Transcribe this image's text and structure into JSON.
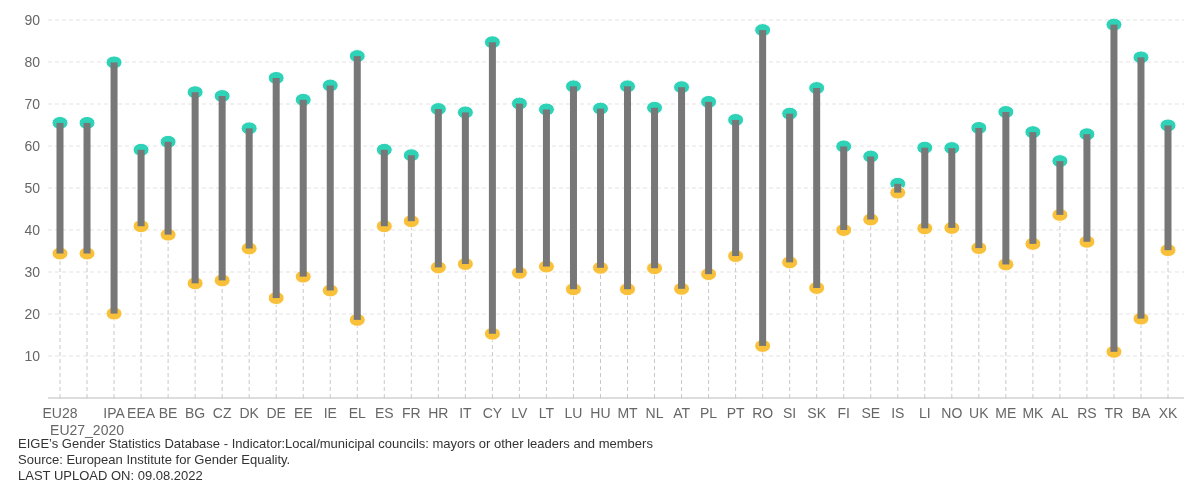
{
  "chart_data": {
    "type": "bar",
    "categories": [
      "EU28",
      "EU27_2020",
      "IPA",
      "EEA",
      "BE",
      "BG",
      "CZ",
      "DK",
      "DE",
      "EE",
      "IE",
      "EL",
      "ES",
      "FR",
      "HR",
      "IT",
      "CY",
      "LV",
      "LT",
      "LU",
      "HU",
      "MT",
      "NL",
      "AT",
      "PL",
      "PT",
      "RO",
      "SI",
      "SK",
      "FI",
      "SE",
      "IS",
      "LI",
      "NO",
      "UK",
      "ME",
      "MK",
      "AL",
      "RS",
      "TR",
      "BA",
      "XK"
    ],
    "series": [
      {
        "type": "bar",
        "color": "#777777",
        "base": [
          34.4,
          34.4,
          20.1,
          40.9,
          38.9,
          27.3,
          28.0,
          35.6,
          23.8,
          28.9,
          25.6,
          18.6,
          40.9,
          42.1,
          31.1,
          31.9,
          15.3,
          29.8,
          31.3,
          25.9,
          31.0,
          25.9,
          30.9,
          26.0,
          29.5,
          33.8,
          12.4,
          32.3,
          26.2,
          40.0,
          42.5,
          48.9,
          40.4,
          40.5,
          35.7,
          31.8,
          36.7,
          43.6,
          37.2,
          11.0,
          18.9,
          35.2
        ],
        "values": [
          31.1,
          31.1,
          59.8,
          18.2,
          22.1,
          45.5,
          43.9,
          28.6,
          52.4,
          42.1,
          48.8,
          62.8,
          18.2,
          15.7,
          37.7,
          36.1,
          69.4,
          40.3,
          37.4,
          48.3,
          37.9,
          48.3,
          38.2,
          48.0,
          41.0,
          32.4,
          75.2,
          35.4,
          47.6,
          19.9,
          15.0,
          2.1,
          19.2,
          19.0,
          28.6,
          36.3,
          26.6,
          12.8,
          25.6,
          77.9,
          62.2,
          29.7
        ]
      },
      {
        "type": "scatter",
        "color": "#2ed3b7",
        "values": [
          65.5,
          65.5,
          79.9,
          59.1,
          61.0,
          72.8,
          71.9,
          64.2,
          76.2,
          71.0,
          74.4,
          81.4,
          59.1,
          57.8,
          68.8,
          68.0,
          84.7,
          70.1,
          68.7,
          74.2,
          68.9,
          74.2,
          69.1,
          74.0,
          70.5,
          66.2,
          87.6,
          67.7,
          73.8,
          59.9,
          57.5,
          51.0,
          59.6,
          59.5,
          64.3,
          68.1,
          63.3,
          56.4,
          62.8,
          88.9,
          81.1,
          64.9
        ]
      },
      {
        "type": "scatter",
        "color": "#f9c13a",
        "values": [
          34.4,
          34.4,
          20.1,
          40.9,
          38.9,
          27.3,
          28.0,
          35.6,
          23.8,
          28.9,
          25.6,
          18.6,
          40.9,
          42.1,
          31.1,
          31.9,
          15.3,
          29.8,
          31.3,
          25.9,
          31.0,
          25.9,
          30.9,
          26.0,
          29.5,
          33.8,
          12.4,
          32.3,
          26.2,
          40.0,
          42.5,
          48.9,
          40.4,
          40.5,
          35.7,
          31.8,
          36.7,
          43.6,
          37.2,
          11.0,
          18.9,
          35.2
        ]
      }
    ],
    "ylim": [
      0,
      90
    ],
    "yticks": [
      10,
      20,
      30,
      40,
      50,
      60,
      70,
      80,
      90
    ],
    "grid": true,
    "marker": "circle",
    "annotations": [
      "EIGE’s Gender Statistics Database - Indicator:Local/municipal councils: mayors or other leaders and members",
      "Source: European Institute for Gender Equality.",
      "LAST UPLOAD ON: 09.08.2022"
    ]
  }
}
